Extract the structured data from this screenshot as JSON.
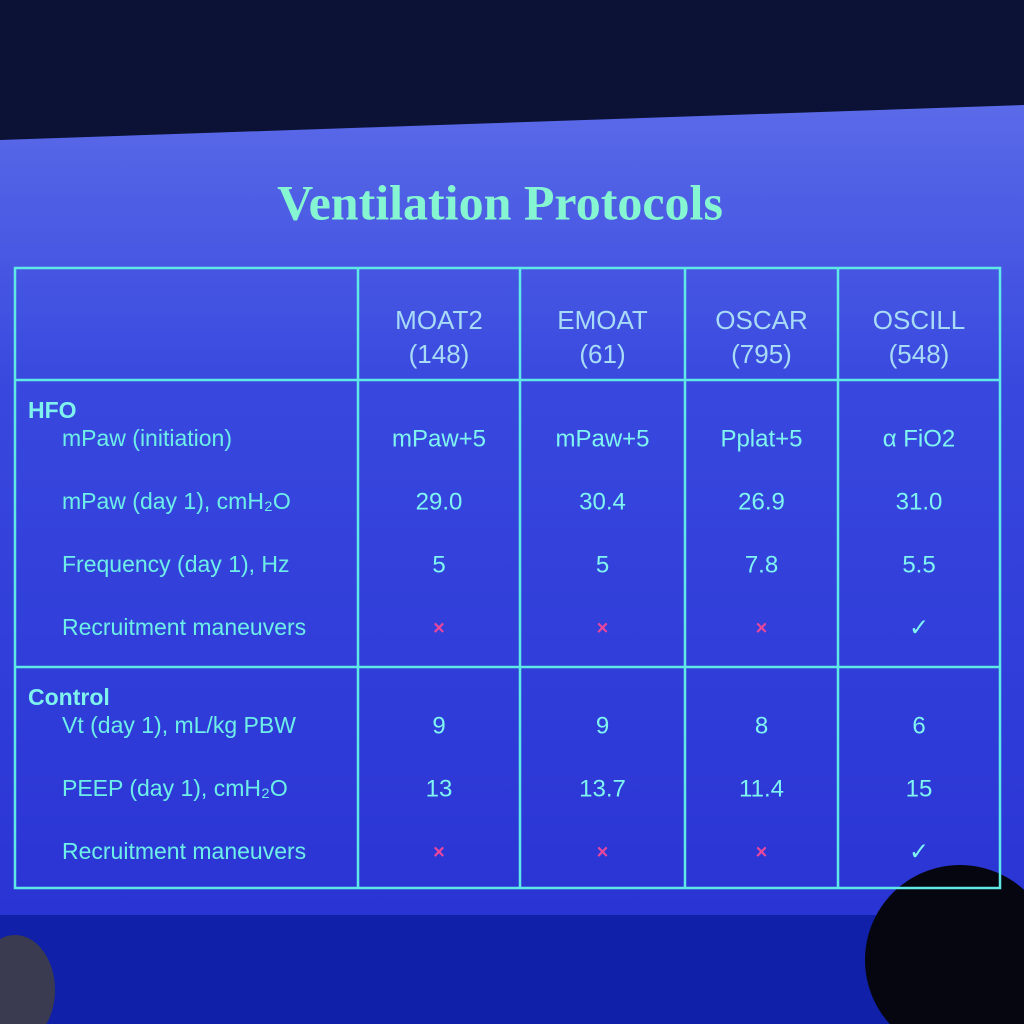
{
  "title": "Ventilation Protocols",
  "table": {
    "columns": [
      {
        "name": "MOAT2",
        "n": "(148)"
      },
      {
        "name": "EMOAT",
        "n": "(61)"
      },
      {
        "name": "OSCAR",
        "n": "(795)"
      },
      {
        "name": "OSCILL",
        "n": "(548)"
      }
    ],
    "sections": [
      {
        "name": "HFO",
        "rows": [
          {
            "label": "mPaw (initiation)",
            "cells": [
              "mPaw+5",
              "mPaw+5",
              "Pplat+5",
              "α FiO2"
            ]
          },
          {
            "label": "mPaw (day 1), cmH₂O",
            "cells": [
              "29.0",
              "30.4",
              "26.9",
              "31.0"
            ]
          },
          {
            "label": "Frequency (day 1), Hz",
            "cells": [
              "5",
              "5",
              "7.8",
              "5.5"
            ]
          },
          {
            "label": "Recruitment maneuvers",
            "cells": [
              "×",
              "×",
              "×",
              "✓"
            ]
          }
        ]
      },
      {
        "name": "Control",
        "rows": [
          {
            "label": "Vt (day 1), mL/kg PBW",
            "cells": [
              "9",
              "9",
              "8",
              "6"
            ]
          },
          {
            "label": "PEEP (day 1), cmH₂O",
            "cells": [
              "13",
              "13.7",
              "11.4",
              "15"
            ]
          },
          {
            "label": "Recruitment maneuvers",
            "cells": [
              "×",
              "×",
              "×",
              "✓"
            ]
          }
        ]
      }
    ]
  }
}
